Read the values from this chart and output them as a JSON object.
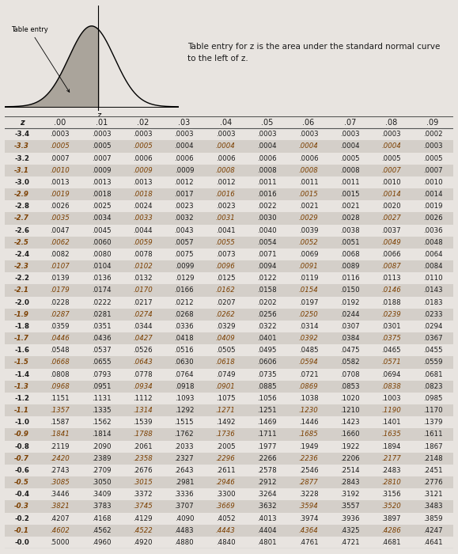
{
  "title_text": "Table entry for z is the area under the standard normal curve\nto the left of z.",
  "col_headers": [
    "z",
    ".00",
    ".01",
    ".02",
    ".03",
    ".04",
    ".05",
    ".06",
    ".07",
    ".08",
    ".09"
  ],
  "rows": [
    [
      "-3.4",
      ".0003",
      ".0003",
      ".0003",
      ".0003",
      ".0003",
      ".0003",
      ".0003",
      ".0003",
      ".0003",
      ".0002"
    ],
    [
      "-3.3",
      ".0005",
      ".0005",
      ".0005",
      ".0004",
      ".0004",
      ".0004",
      ".0004",
      ".0004",
      ".0004",
      ".0003"
    ],
    [
      "-3.2",
      ".0007",
      ".0007",
      ".0006",
      ".0006",
      ".0006",
      ".0006",
      ".0006",
      ".0005",
      ".0005",
      ".0005"
    ],
    [
      "-3.1",
      ".0010",
      ".0009",
      ".0009",
      ".0009",
      ".0008",
      ".0008",
      ".0008",
      ".0008",
      ".0007",
      ".0007"
    ],
    [
      "-3.0",
      ".0013",
      ".0013",
      ".0013",
      ".0012",
      ".0012",
      ".0011",
      ".0011",
      ".0011",
      ".0010",
      ".0010"
    ],
    [
      "-2.9",
      ".0019",
      ".0018",
      ".0018",
      ".0017",
      ".0016",
      ".0016",
      ".0015",
      ".0015",
      ".0014",
      ".0014"
    ],
    [
      "-2.8",
      ".0026",
      ".0025",
      ".0024",
      ".0023",
      ".0023",
      ".0022",
      ".0021",
      ".0021",
      ".0020",
      ".0019"
    ],
    [
      "-2.7",
      ".0035",
      ".0034",
      ".0033",
      ".0032",
      ".0031",
      ".0030",
      ".0029",
      ".0028",
      ".0027",
      ".0026"
    ],
    [
      "-2.6",
      ".0047",
      ".0045",
      ".0044",
      ".0043",
      ".0041",
      ".0040",
      ".0039",
      ".0038",
      ".0037",
      ".0036"
    ],
    [
      "-2.5",
      ".0062",
      ".0060",
      ".0059",
      ".0057",
      ".0055",
      ".0054",
      ".0052",
      ".0051",
      ".0049",
      ".0048"
    ],
    [
      "-2.4",
      ".0082",
      ".0080",
      ".0078",
      ".0075",
      ".0073",
      ".0071",
      ".0069",
      ".0068",
      ".0066",
      ".0064"
    ],
    [
      "-2.3",
      ".0107",
      ".0104",
      ".0102",
      ".0099",
      ".0096",
      ".0094",
      ".0091",
      ".0089",
      ".0087",
      ".0084"
    ],
    [
      "-2.2",
      ".0139",
      ".0136",
      ".0132",
      ".0129",
      ".0125",
      ".0122",
      ".0119",
      ".0116",
      ".0113",
      ".0110"
    ],
    [
      "-2.1",
      ".0179",
      ".0174",
      ".0170",
      ".0166",
      ".0162",
      ".0158",
      ".0154",
      ".0150",
      ".0146",
      ".0143"
    ],
    [
      "-2.0",
      ".0228",
      ".0222",
      ".0217",
      ".0212",
      ".0207",
      ".0202",
      ".0197",
      ".0192",
      ".0188",
      ".0183"
    ],
    [
      "-1.9",
      ".0287",
      ".0281",
      ".0274",
      ".0268",
      ".0262",
      ".0256",
      ".0250",
      ".0244",
      ".0239",
      ".0233"
    ],
    [
      "-1.8",
      ".0359",
      ".0351",
      ".0344",
      ".0336",
      ".0329",
      ".0322",
      ".0314",
      ".0307",
      ".0301",
      ".0294"
    ],
    [
      "-1.7",
      ".0446",
      ".0436",
      ".0427",
      ".0418",
      ".0409",
      ".0401",
      ".0392",
      ".0384",
      ".0375",
      ".0367"
    ],
    [
      "-1.6",
      ".0548",
      ".0537",
      ".0526",
      ".0516",
      ".0505",
      ".0495",
      ".0485",
      ".0475",
      ".0465",
      ".0455"
    ],
    [
      "-1.5",
      ".0668",
      ".0655",
      ".0643",
      ".0630",
      ".0618",
      ".0606",
      ".0594",
      ".0582",
      ".0571",
      ".0559"
    ],
    [
      "-1.4",
      ".0808",
      ".0793",
      ".0778",
      ".0764",
      ".0749",
      ".0735",
      ".0721",
      ".0708",
      ".0694",
      ".0681"
    ],
    [
      "-1.3",
      ".0968",
      ".0951",
      ".0934",
      ".0918",
      ".0901",
      ".0885",
      ".0869",
      ".0853",
      ".0838",
      ".0823"
    ],
    [
      "-1.2",
      ".1151",
      ".1131",
      ".1112",
      ".1093",
      ".1075",
      ".1056",
      ".1038",
      ".1020",
      ".1003",
      ".0985"
    ],
    [
      "-1.1",
      ".1357",
      ".1335",
      ".1314",
      ".1292",
      ".1271",
      ".1251",
      ".1230",
      ".1210",
      ".1190",
      ".1170"
    ],
    [
      "-1.0",
      ".1587",
      ".1562",
      ".1539",
      ".1515",
      ".1492",
      ".1469",
      ".1446",
      ".1423",
      ".1401",
      ".1379"
    ],
    [
      "-0.9",
      ".1841",
      ".1814",
      ".1788",
      ".1762",
      ".1736",
      ".1711",
      ".1685",
      ".1660",
      ".1635",
      ".1611"
    ],
    [
      "-0.8",
      ".2119",
      ".2090",
      ".2061",
      ".2033",
      ".2005",
      ".1977",
      ".1949",
      ".1922",
      ".1894",
      ".1867"
    ],
    [
      "-0.7",
      ".2420",
      ".2389",
      ".2358",
      ".2327",
      ".2296",
      ".2266",
      ".2236",
      ".2206",
      ".2177",
      ".2148"
    ],
    [
      "-0.6",
      ".2743",
      ".2709",
      ".2676",
      ".2643",
      ".2611",
      ".2578",
      ".2546",
      ".2514",
      ".2483",
      ".2451"
    ],
    [
      "-0.5",
      ".3085",
      ".3050",
      ".3015",
      ".2981",
      ".2946",
      ".2912",
      ".2877",
      ".2843",
      ".2810",
      ".2776"
    ],
    [
      "-0.4",
      ".3446",
      ".3409",
      ".3372",
      ".3336",
      ".3300",
      ".3264",
      ".3228",
      ".3192",
      ".3156",
      ".3121"
    ],
    [
      "-0.3",
      ".3821",
      ".3783",
      ".3745",
      ".3707",
      ".3669",
      ".3632",
      ".3594",
      ".3557",
      ".3520",
      ".3483"
    ],
    [
      "-0.2",
      ".4207",
      ".4168",
      ".4129",
      ".4090",
      ".4052",
      ".4013",
      ".3974",
      ".3936",
      ".3897",
      ".3859"
    ],
    [
      "-0.1",
      ".4602",
      ".4562",
      ".4522",
      ".4483",
      ".4443",
      ".4404",
      ".4364",
      ".4325",
      ".4286",
      ".4247"
    ],
    [
      "-0.0",
      ".5000",
      ".4960",
      ".4920",
      ".4880",
      ".4840",
      ".4801",
      ".4761",
      ".4721",
      ".4681",
      ".4641"
    ]
  ],
  "highlight_row_indices": [
    1,
    3,
    5,
    7,
    9,
    11,
    13,
    15,
    17,
    19,
    21,
    23,
    25,
    27,
    29,
    31,
    33
  ],
  "highlight_cols": [
    1,
    3,
    5,
    7,
    9
  ],
  "bg_color": "#e8e4e0",
  "row_bg_light": "#e8e4e0",
  "row_bg_dark": "#d4cfc9",
  "header_bg": "#c8c2bc",
  "text_brown": "#7B3F00",
  "text_black": "#1a1a1a",
  "line_color": "#555555"
}
